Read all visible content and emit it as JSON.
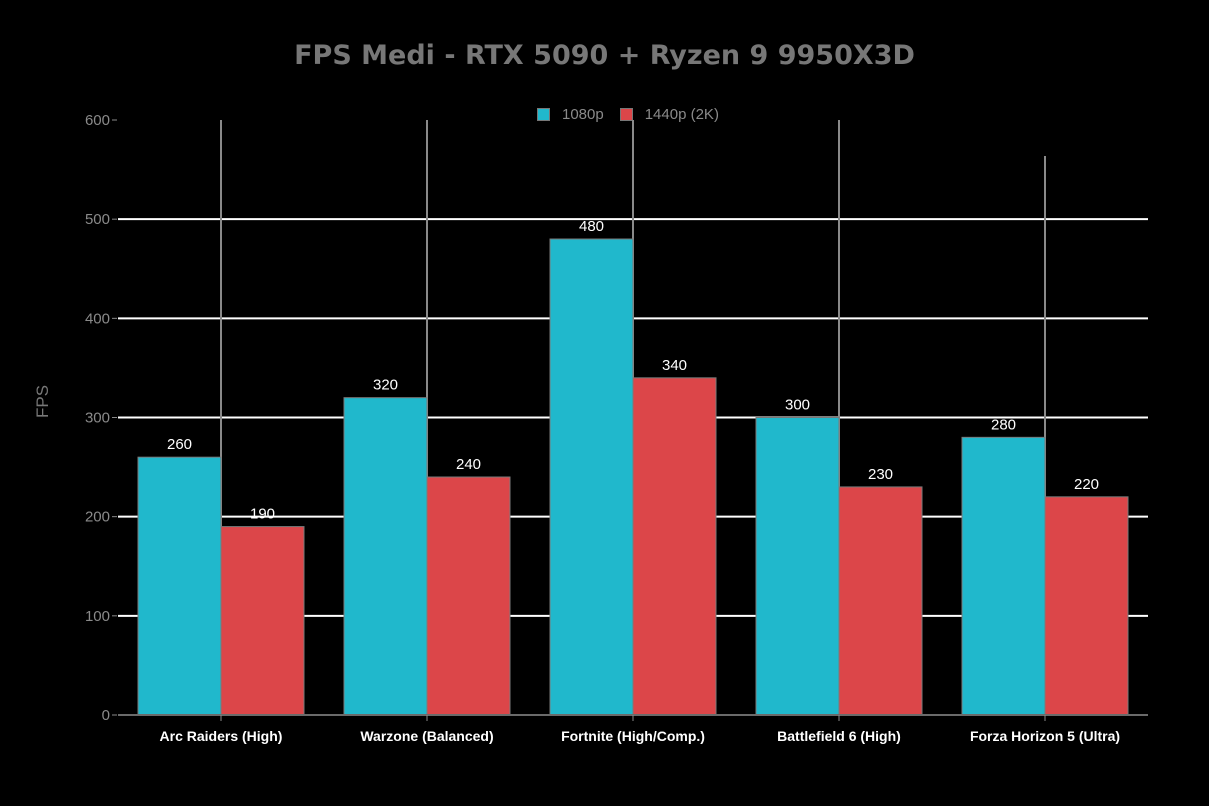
{
  "chart_data": {
    "type": "bar",
    "title": "FPS Medi - RTX 5090 + Ryzen 9 9950X3D",
    "xlabel": "",
    "ylabel": "FPS",
    "ylim": [
      0,
      600
    ],
    "yticks": [
      0,
      100,
      200,
      300,
      400,
      500,
      600
    ],
    "grid": true,
    "legend_position": "top-center",
    "categories": [
      "Arc Raiders (High)",
      "Warzone (Balanced)",
      "Fortnite (High/Comp.)",
      "Battlefield 6 (High)",
      "Forza Horizon 5 (Ultra)"
    ],
    "series": [
      {
        "name": "1080p",
        "color": "#20b8cc",
        "values": [
          260,
          320,
          480,
          300,
          280
        ]
      },
      {
        "name": "1440p (2K)",
        "color": "#dc4649",
        "values": [
          190,
          240,
          340,
          230,
          220
        ]
      }
    ]
  },
  "colors": {
    "background": "#000000",
    "title": "#777777",
    "axis_text": "#8a8a8a",
    "gridline_y": "#ffffff",
    "gridline_x": "#8a8a8a",
    "value_label": "#ffffff"
  }
}
